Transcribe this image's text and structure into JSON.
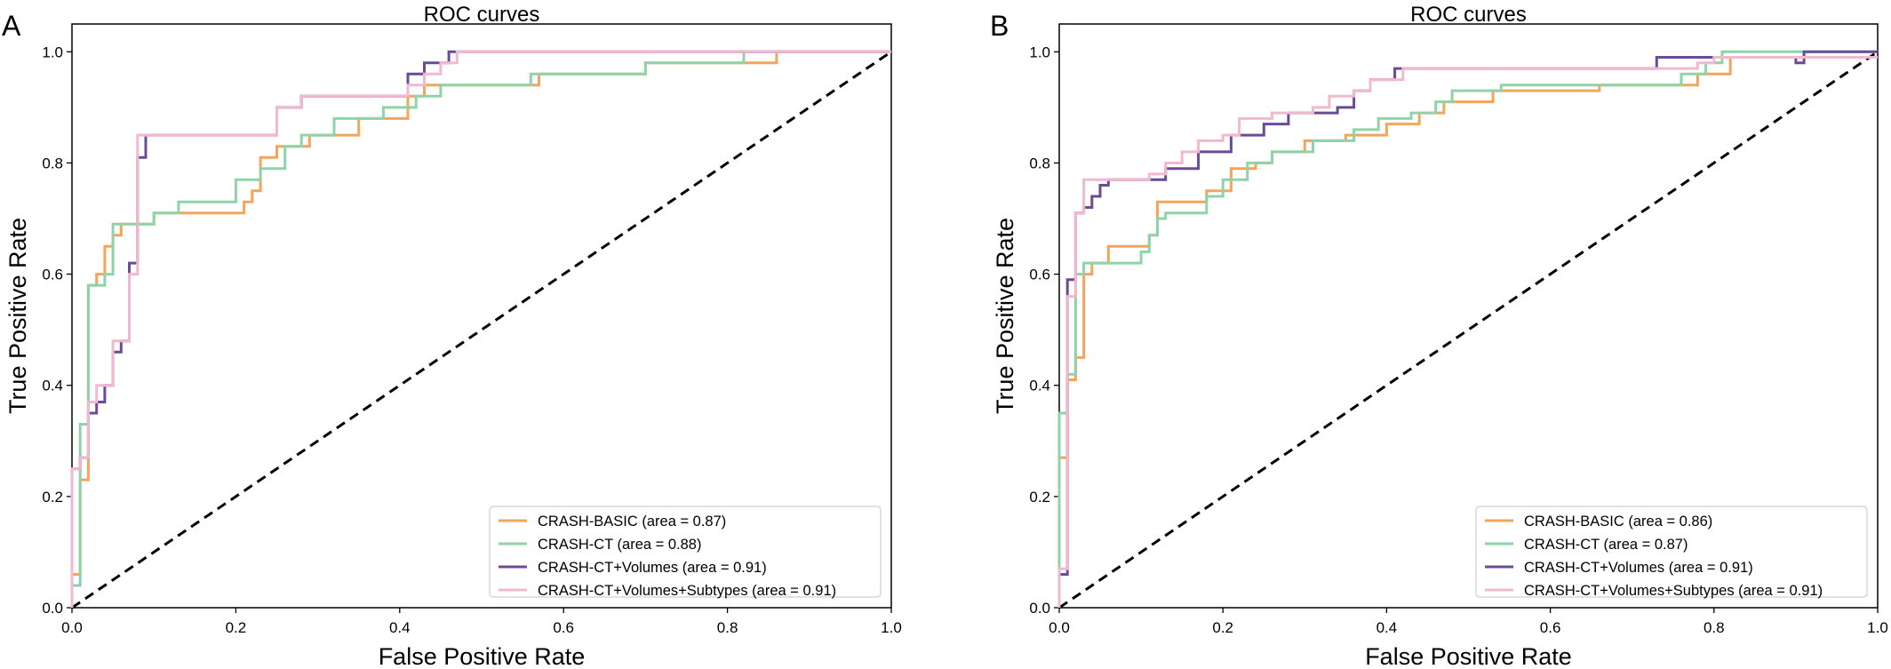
{
  "colors": {
    "orange": "#f5a55a",
    "green": "#8fd3a8",
    "purple": "#6a4b96",
    "pink": "#f2b8cf",
    "diagonal": "#000000"
  },
  "chart_data": [
    {
      "type": "line",
      "panel_label": "A",
      "title": "ROC curves",
      "xlabel": "False Positive Rate",
      "ylabel": "True Positive Rate",
      "xlim": [
        0,
        1
      ],
      "ylim": [
        0,
        1.05
      ],
      "x_ticks": [
        "0.0",
        "0.2",
        "0.4",
        "0.6",
        "0.8",
        "1.0"
      ],
      "y_ticks": [
        "0.0",
        "0.2",
        "0.4",
        "0.6",
        "0.8",
        "1.0"
      ],
      "grid": false,
      "legend_position": "bottom-right",
      "reference_line": "dashed diagonal",
      "series": [
        {
          "name": "CRASH-BASIC (area = 0.87)",
          "color": "orange",
          "x": [
            0,
            0,
            0.01,
            0.01,
            0.02,
            0.02,
            0.03,
            0.03,
            0.04,
            0.04,
            0.05,
            0.05,
            0.06,
            0.06,
            0.08,
            0.08,
            0.1,
            0.1,
            0.21,
            0.21,
            0.22,
            0.22,
            0.23,
            0.23,
            0.25,
            0.25,
            0.29,
            0.29,
            0.33,
            0.33,
            0.35,
            0.35,
            0.41,
            0.41,
            0.43,
            0.43,
            0.57,
            0.57,
            0.7,
            0.7,
            0.86,
            0.86,
            1
          ],
          "y": [
            0,
            0.06,
            0.06,
            0.23,
            0.23,
            0.58,
            0.58,
            0.6,
            0.6,
            0.65,
            0.65,
            0.67,
            0.67,
            0.69,
            0.69,
            0.69,
            0.69,
            0.71,
            0.71,
            0.73,
            0.73,
            0.75,
            0.75,
            0.81,
            0.81,
            0.83,
            0.83,
            0.85,
            0.85,
            0.85,
            0.85,
            0.88,
            0.88,
            0.92,
            0.92,
            0.94,
            0.94,
            0.96,
            0.96,
            0.98,
            0.98,
            1.0,
            1.0
          ]
        },
        {
          "name": "CRASH-CT (area = 0.88)",
          "color": "green",
          "x": [
            0,
            0,
            0.01,
            0.01,
            0.02,
            0.02,
            0.04,
            0.04,
            0.05,
            0.05,
            0.1,
            0.1,
            0.13,
            0.13,
            0.2,
            0.2,
            0.23,
            0.23,
            0.26,
            0.26,
            0.28,
            0.28,
            0.32,
            0.32,
            0.38,
            0.38,
            0.42,
            0.42,
            0.45,
            0.45,
            0.56,
            0.56,
            0.7,
            0.7,
            0.82,
            0.82,
            1
          ],
          "y": [
            0,
            0.04,
            0.04,
            0.33,
            0.33,
            0.58,
            0.58,
            0.6,
            0.6,
            0.69,
            0.69,
            0.71,
            0.71,
            0.73,
            0.73,
            0.77,
            0.77,
            0.79,
            0.79,
            0.83,
            0.83,
            0.85,
            0.85,
            0.88,
            0.88,
            0.9,
            0.9,
            0.92,
            0.92,
            0.94,
            0.94,
            0.96,
            0.96,
            0.98,
            0.98,
            1.0,
            1.0
          ]
        },
        {
          "name": "CRASH-CT+Volumes (area = 0.91)",
          "color": "purple",
          "x": [
            0,
            0,
            0.01,
            0.01,
            0.02,
            0.02,
            0.03,
            0.03,
            0.04,
            0.04,
            0.05,
            0.05,
            0.06,
            0.06,
            0.07,
            0.07,
            0.08,
            0.08,
            0.09,
            0.09,
            0.25,
            0.25,
            0.28,
            0.28,
            0.41,
            0.41,
            0.43,
            0.43,
            0.46,
            0.46,
            1
          ],
          "y": [
            0,
            0.25,
            0.25,
            0.27,
            0.27,
            0.35,
            0.35,
            0.37,
            0.37,
            0.4,
            0.4,
            0.46,
            0.46,
            0.48,
            0.48,
            0.62,
            0.62,
            0.81,
            0.81,
            0.85,
            0.85,
            0.9,
            0.9,
            0.92,
            0.92,
            0.96,
            0.96,
            0.98,
            0.98,
            1.0,
            1.0
          ]
        },
        {
          "name": "CRASH-CT+Volumes+Subtypes (area = 0.91)",
          "color": "pink",
          "x": [
            0,
            0,
            0.01,
            0.01,
            0.02,
            0.02,
            0.03,
            0.03,
            0.05,
            0.05,
            0.07,
            0.07,
            0.08,
            0.08,
            0.1,
            0.1,
            0.25,
            0.25,
            0.28,
            0.28,
            0.41,
            0.41,
            0.43,
            0.43,
            0.45,
            0.45,
            0.47,
            0.47,
            1
          ],
          "y": [
            0,
            0.25,
            0.25,
            0.27,
            0.27,
            0.37,
            0.37,
            0.4,
            0.4,
            0.48,
            0.48,
            0.6,
            0.6,
            0.85,
            0.85,
            0.85,
            0.85,
            0.9,
            0.9,
            0.92,
            0.92,
            0.94,
            0.94,
            0.96,
            0.96,
            0.98,
            0.98,
            1.0,
            1.0
          ]
        }
      ]
    },
    {
      "type": "line",
      "panel_label": "B",
      "title": "ROC curves",
      "xlabel": "False Positive Rate",
      "ylabel": "True Positive Rate",
      "xlim": [
        0,
        1
      ],
      "ylim": [
        0,
        1.05
      ],
      "x_ticks": [
        "0.0",
        "0.2",
        "0.4",
        "0.6",
        "0.8",
        "1.0"
      ],
      "y_ticks": [
        "0.0",
        "0.2",
        "0.4",
        "0.6",
        "0.8",
        "1.0"
      ],
      "grid": false,
      "legend_position": "bottom-right",
      "reference_line": "dashed diagonal",
      "series": [
        {
          "name": "CRASH-BASIC (area = 0.86)",
          "color": "orange",
          "x": [
            0,
            0,
            0.01,
            0.01,
            0.02,
            0.02,
            0.03,
            0.03,
            0.04,
            0.04,
            0.06,
            0.06,
            0.11,
            0.11,
            0.12,
            0.12,
            0.18,
            0.18,
            0.21,
            0.21,
            0.24,
            0.24,
            0.26,
            0.26,
            0.3,
            0.3,
            0.35,
            0.35,
            0.4,
            0.4,
            0.44,
            0.44,
            0.47,
            0.47,
            0.53,
            0.53,
            0.66,
            0.66,
            0.78,
            0.78,
            0.82,
            0.82,
            1
          ],
          "y": [
            0,
            0.27,
            0.27,
            0.41,
            0.41,
            0.45,
            0.45,
            0.6,
            0.6,
            0.62,
            0.62,
            0.65,
            0.65,
            0.67,
            0.67,
            0.73,
            0.73,
            0.75,
            0.75,
            0.79,
            0.79,
            0.8,
            0.8,
            0.82,
            0.82,
            0.84,
            0.84,
            0.85,
            0.85,
            0.87,
            0.87,
            0.89,
            0.89,
            0.91,
            0.91,
            0.93,
            0.93,
            0.94,
            0.94,
            0.96,
            0.96,
            0.99,
            0.99
          ]
        },
        {
          "name": "CRASH-CT (area = 0.87)",
          "color": "green",
          "x": [
            0,
            0,
            0.01,
            0.01,
            0.02,
            0.02,
            0.03,
            0.03,
            0.1,
            0.1,
            0.11,
            0.11,
            0.12,
            0.12,
            0.13,
            0.13,
            0.18,
            0.18,
            0.2,
            0.2,
            0.23,
            0.23,
            0.26,
            0.26,
            0.31,
            0.31,
            0.36,
            0.36,
            0.39,
            0.39,
            0.43,
            0.43,
            0.46,
            0.46,
            0.48,
            0.48,
            0.54,
            0.54,
            0.76,
            0.76,
            0.79,
            0.79,
            0.81,
            0.81,
            1
          ],
          "y": [
            0,
            0.35,
            0.35,
            0.42,
            0.42,
            0.6,
            0.6,
            0.62,
            0.62,
            0.64,
            0.64,
            0.67,
            0.67,
            0.7,
            0.7,
            0.71,
            0.71,
            0.74,
            0.74,
            0.77,
            0.77,
            0.8,
            0.8,
            0.82,
            0.82,
            0.84,
            0.84,
            0.86,
            0.86,
            0.88,
            0.88,
            0.89,
            0.89,
            0.91,
            0.91,
            0.93,
            0.93,
            0.94,
            0.94,
            0.96,
            0.96,
            0.98,
            0.98,
            1.0,
            1.0
          ]
        },
        {
          "name": "CRASH-CT+Volumes (area = 0.91)",
          "color": "purple",
          "x": [
            0,
            0,
            0.01,
            0.01,
            0.02,
            0.02,
            0.03,
            0.03,
            0.04,
            0.04,
            0.05,
            0.05,
            0.06,
            0.06,
            0.07,
            0.07,
            0.13,
            0.13,
            0.17,
            0.17,
            0.21,
            0.21,
            0.25,
            0.25,
            0.28,
            0.28,
            0.34,
            0.34,
            0.36,
            0.36,
            0.38,
            0.38,
            0.41,
            0.41,
            0.73,
            0.73,
            0.9,
            0.9,
            0.91,
            0.91,
            1
          ],
          "y": [
            0,
            0.06,
            0.06,
            0.59,
            0.59,
            0.71,
            0.71,
            0.72,
            0.72,
            0.74,
            0.74,
            0.76,
            0.76,
            0.77,
            0.77,
            0.77,
            0.77,
            0.79,
            0.79,
            0.82,
            0.82,
            0.85,
            0.85,
            0.87,
            0.87,
            0.89,
            0.89,
            0.9,
            0.9,
            0.93,
            0.93,
            0.95,
            0.95,
            0.97,
            0.97,
            0.99,
            0.99,
            0.98,
            0.98,
            1.0,
            1.0
          ]
        },
        {
          "name": "CRASH-CT+Volumes+Subtypes (area = 0.91)",
          "color": "pink",
          "x": [
            0,
            0,
            0.01,
            0.01,
            0.02,
            0.02,
            0.03,
            0.03,
            0.11,
            0.11,
            0.13,
            0.13,
            0.15,
            0.15,
            0.17,
            0.17,
            0.2,
            0.2,
            0.22,
            0.22,
            0.26,
            0.26,
            0.31,
            0.31,
            0.33,
            0.33,
            0.36,
            0.36,
            0.38,
            0.38,
            0.42,
            0.42,
            0.78,
            0.78,
            0.8,
            0.8,
            1
          ],
          "y": [
            0,
            0.07,
            0.07,
            0.56,
            0.56,
            0.71,
            0.71,
            0.77,
            0.77,
            0.78,
            0.78,
            0.8,
            0.8,
            0.82,
            0.82,
            0.84,
            0.84,
            0.85,
            0.85,
            0.88,
            0.88,
            0.89,
            0.89,
            0.9,
            0.9,
            0.92,
            0.92,
            0.93,
            0.93,
            0.95,
            0.95,
            0.97,
            0.97,
            0.98,
            0.98,
            0.99,
            0.99
          ]
        }
      ]
    }
  ]
}
